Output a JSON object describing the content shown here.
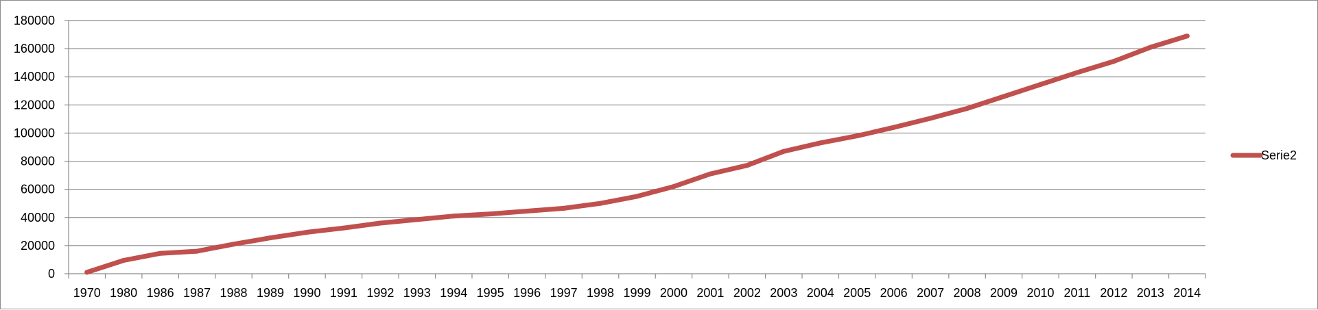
{
  "chart_data": {
    "type": "line",
    "title": "",
    "xlabel": "",
    "ylabel": "",
    "ylim": [
      0,
      180000
    ],
    "yticks": [
      0,
      20000,
      40000,
      60000,
      80000,
      100000,
      120000,
      140000,
      160000,
      180000
    ],
    "grid": true,
    "legend_position": "right",
    "categories": [
      "1970",
      "1980",
      "1986",
      "1987",
      "1988",
      "1989",
      "1990",
      "1991",
      "1992",
      "1993",
      "1994",
      "1995",
      "1996",
      "1997",
      "1998",
      "1999",
      "2000",
      "2001",
      "2002",
      "2003",
      "2004",
      "2005",
      "2006",
      "2007",
      "2008",
      "2009",
      "2010",
      "2011",
      "2012",
      "2013",
      "2014"
    ],
    "series": [
      {
        "name": "Serie2",
        "color": "#c0504d",
        "values": [
          1000,
          9500,
          14500,
          16000,
          21000,
          25500,
          29500,
          32500,
          36000,
          38500,
          41000,
          42500,
          44500,
          46500,
          50000,
          55000,
          62000,
          71000,
          77000,
          87000,
          93000,
          98000,
          104000,
          110500,
          117500,
          126000,
          134500,
          143000,
          151000,
          161000,
          169000
        ]
      }
    ]
  }
}
